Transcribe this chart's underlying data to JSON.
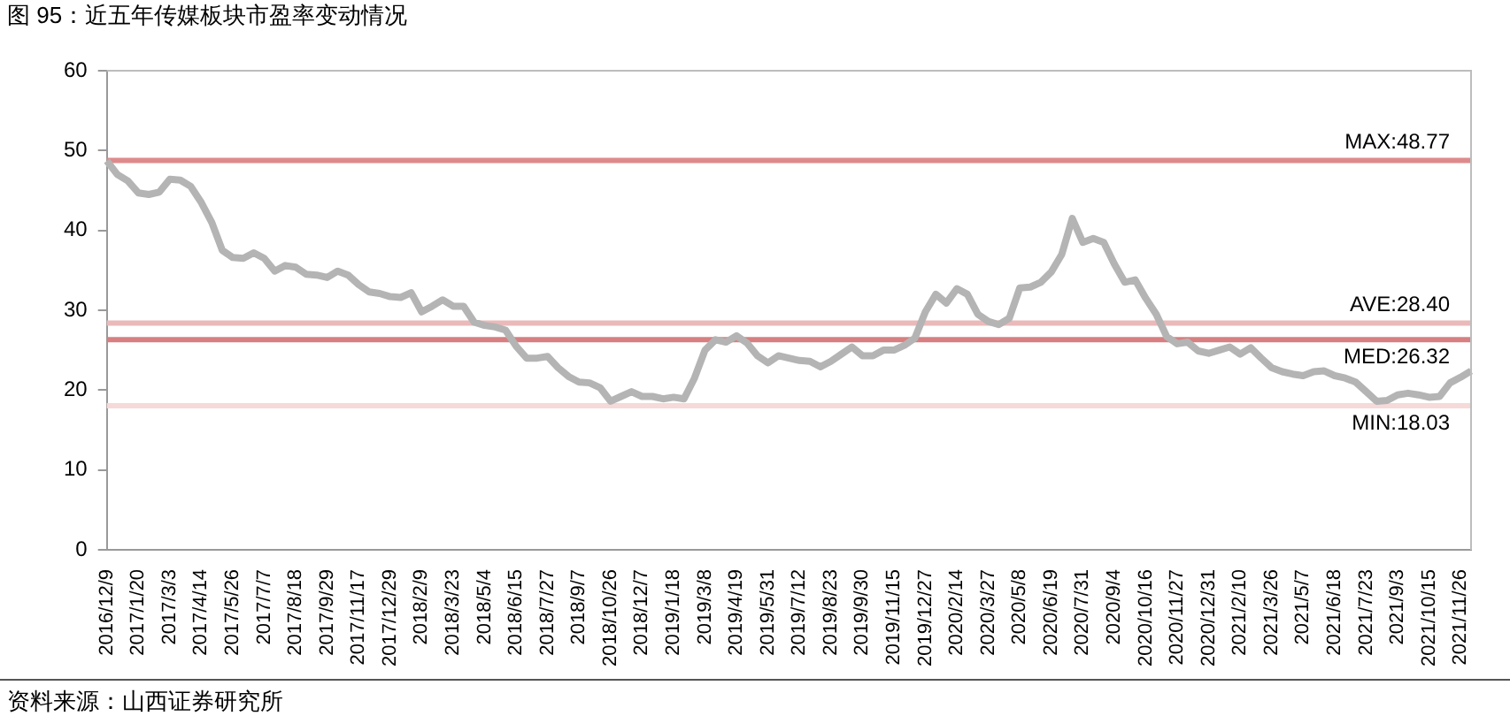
{
  "chart_data": {
    "type": "line",
    "title": "图 95：近五年传媒板块市盈率变动情况",
    "categories": [
      "2016/12/9",
      null,
      null,
      "2017/1/20",
      null,
      null,
      "2017/3/3",
      null,
      null,
      "2017/4/14",
      null,
      null,
      "2017/5/26",
      null,
      null,
      "2017/7/7",
      null,
      null,
      "2017/8/18",
      null,
      null,
      "2017/9/29",
      null,
      null,
      "2017/11/17",
      null,
      null,
      "2017/12/29",
      null,
      null,
      "2018/2/9",
      null,
      null,
      "2018/3/23",
      null,
      null,
      "2018/5/4",
      null,
      null,
      "2018/6/15",
      null,
      null,
      "2018/7/27",
      null,
      null,
      "2018/9/7",
      null,
      null,
      "2018/10/26",
      null,
      null,
      "2018/12/7",
      null,
      null,
      "2019/1/18",
      null,
      null,
      "2019/3/8",
      null,
      null,
      "2019/4/19",
      null,
      null,
      "2019/5/31",
      null,
      null,
      "2019/7/12",
      null,
      null,
      "2019/8/23",
      null,
      null,
      "2019/9/30",
      null,
      null,
      "2019/11/15",
      null,
      null,
      "2019/12/27",
      null,
      null,
      "2020/2/14",
      null,
      null,
      "2020/3/27",
      null,
      null,
      "2020/5/8",
      null,
      null,
      "2020/6/19",
      null,
      null,
      "2020/7/31",
      null,
      null,
      "2020/9/4",
      null,
      null,
      "2020/10/16",
      null,
      null,
      "2020/11/27",
      null,
      null,
      "2020/12/31",
      null,
      null,
      "2021/2/10",
      null,
      null,
      "2021/3/26",
      null,
      null,
      "2021/5/7",
      null,
      null,
      "2021/6/18",
      null,
      null,
      "2021/7/23",
      null,
      null,
      "2021/9/3",
      null,
      null,
      "2021/10/15",
      null,
      null,
      "2021/11/26",
      null
    ],
    "series": [
      {
        "color": "#b4b4b4",
        "values": [
          48.7,
          47.0,
          46.2,
          44.7,
          44.5,
          44.8,
          46.4,
          46.3,
          45.5,
          43.5,
          41.0,
          37.5,
          36.6,
          36.5,
          37.2,
          36.5,
          34.9,
          35.6,
          35.4,
          34.5,
          34.4,
          34.1,
          34.9,
          34.4,
          33.2,
          32.3,
          32.1,
          31.7,
          31.6,
          32.2,
          29.8,
          30.5,
          31.3,
          30.5,
          30.5,
          28.5,
          28.1,
          27.9,
          27.5,
          25.5,
          24.0,
          24.0,
          24.2,
          22.8,
          21.7,
          21.0,
          20.9,
          20.3,
          18.6,
          19.2,
          19.8,
          19.2,
          19.2,
          18.9,
          19.1,
          18.9,
          21.5,
          25.0,
          26.3,
          26.0,
          26.8,
          25.9,
          24.3,
          23.4,
          24.3,
          24.0,
          23.7,
          23.6,
          22.9,
          23.6,
          24.5,
          25.4,
          24.3,
          24.3,
          25.0,
          25.0,
          25.6,
          26.5,
          29.8,
          32.0,
          30.9,
          32.7,
          32.0,
          29.5,
          28.6,
          28.2,
          29.0,
          32.8,
          32.9,
          33.5,
          34.8,
          37.0,
          41.5,
          38.5,
          39.0,
          38.5,
          35.8,
          33.5,
          33.8,
          31.5,
          29.5,
          26.7,
          25.8,
          26.0,
          24.9,
          24.6,
          25.0,
          25.4,
          24.5,
          25.3,
          24.0,
          22.8,
          22.3,
          22.0,
          21.8,
          22.3,
          22.4,
          21.8,
          21.5,
          21.0,
          19.8,
          18.6,
          18.7,
          19.4,
          19.6,
          19.4,
          19.1,
          19.2,
          20.9,
          21.6,
          22.4
        ]
      }
    ],
    "ylim": [
      0,
      60
    ],
    "yticks": [
      0,
      10,
      20,
      30,
      40,
      50,
      60
    ],
    "grid": false,
    "legend": false,
    "marker": "none",
    "line_style": "solid",
    "ref_lines": [
      {
        "axis": "y",
        "value": 48.77,
        "label": "MAX:48.77",
        "color": "#de8a8c"
      },
      {
        "axis": "y",
        "value": 28.4,
        "label": "AVE:28.40",
        "color": "#ebb9ba"
      },
      {
        "axis": "y",
        "value": 26.32,
        "label": "MED:26.32",
        "color": "#d77f81"
      },
      {
        "axis": "y",
        "value": 18.03,
        "label": "MIN:18.03",
        "color": "#f6d9d9"
      }
    ],
    "annotations": [
      "资料来源：山西证券研究所"
    ]
  }
}
